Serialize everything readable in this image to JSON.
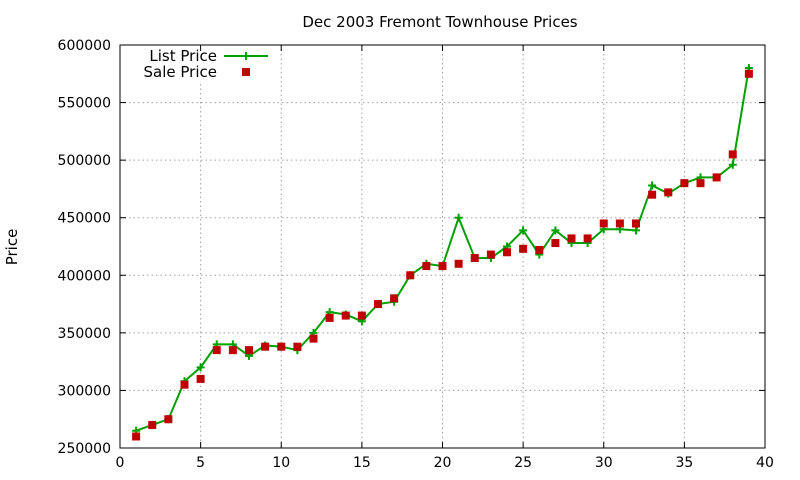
{
  "chart_data": {
    "type": "line",
    "title": "Dec 2003 Fremont Townhouse Prices",
    "xlabel": "",
    "ylabel": "Price",
    "xlim": [
      0,
      40
    ],
    "ylim": [
      250000,
      600000
    ],
    "xticks": [
      0,
      5,
      10,
      15,
      20,
      25,
      30,
      35,
      40
    ],
    "yticks": [
      250000,
      300000,
      350000,
      400000,
      450000,
      500000,
      550000,
      600000
    ],
    "grid": true,
    "legend_position": "top-left",
    "series": [
      {
        "name": "List Price",
        "style": "line-plus",
        "color": "#00a000",
        "x": [
          1,
          2,
          3,
          4,
          5,
          6,
          7,
          8,
          9,
          10,
          11,
          12,
          13,
          14,
          15,
          16,
          17,
          18,
          19,
          20,
          21,
          22,
          23,
          24,
          25,
          26,
          27,
          28,
          29,
          30,
          31,
          32,
          33,
          34,
          35,
          36,
          37,
          38,
          39
        ],
        "y": [
          265000,
          270000,
          275000,
          308000,
          320000,
          340000,
          340000,
          330000,
          339000,
          338000,
          335000,
          350000,
          368000,
          366000,
          360000,
          375000,
          377000,
          400000,
          410000,
          408000,
          450000,
          415000,
          415000,
          425000,
          439000,
          418000,
          439000,
          428000,
          428000,
          440000,
          440000,
          439000,
          478000,
          471000,
          480000,
          485000,
          485000,
          496000,
          580000
        ]
      },
      {
        "name": "Sale Price",
        "style": "square-points",
        "color": "#c00000",
        "x": [
          1,
          2,
          3,
          4,
          5,
          6,
          7,
          8,
          9,
          10,
          11,
          12,
          13,
          14,
          15,
          16,
          17,
          18,
          19,
          20,
          21,
          22,
          23,
          24,
          25,
          26,
          27,
          28,
          29,
          30,
          31,
          32,
          33,
          34,
          35,
          36,
          37,
          38,
          39
        ],
        "y": [
          260000,
          270000,
          275000,
          305000,
          310000,
          335000,
          335000,
          335000,
          338000,
          338000,
          338000,
          345000,
          363000,
          365000,
          365000,
          375000,
          380000,
          400000,
          408000,
          408000,
          410000,
          415000,
          418000,
          420000,
          423000,
          422000,
          428000,
          432000,
          432000,
          445000,
          445000,
          445000,
          470000,
          472000,
          480000,
          480000,
          485000,
          505000,
          575000
        ]
      }
    ]
  }
}
